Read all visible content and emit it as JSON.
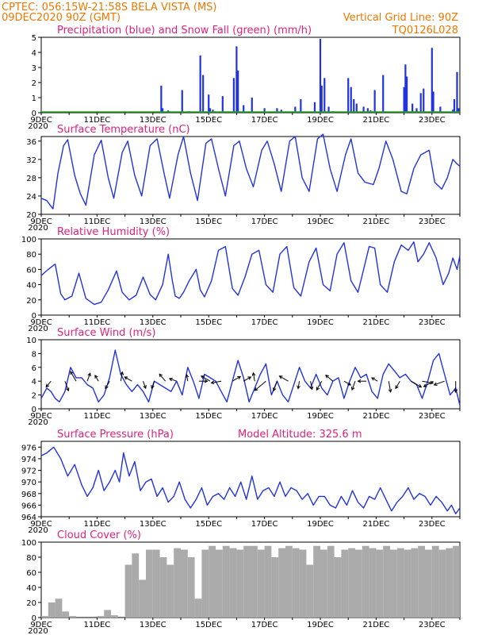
{
  "header": {
    "line1": "CPTEC:    056:15W-21:58S   BELA VISTA (MS)",
    "line2": "09DEC2020 90Z (GMT)",
    "grid_note": "Vertical Grid Line: 90Z",
    "run_code": "TQ0126L028"
  },
  "colors": {
    "line": "#2233dd",
    "snow": "#22aa22",
    "cloud": "#aaaaaa",
    "title": "#e0217a",
    "header": "#ee7700"
  },
  "x_labels": [
    "9DEC",
    "11DEC",
    "13DEC",
    "15DEC",
    "17DEC",
    "19DEC",
    "21DEC",
    "23DEC"
  ],
  "x_sublabel": "2020",
  "chart_data": [
    {
      "type": "bar",
      "id": "precip",
      "title": "Precipitation (blue) and Snow Fall (green) (mm/h)",
      "ylim": [
        0,
        5
      ],
      "yticks": [
        0,
        1,
        2,
        3,
        4,
        5
      ],
      "x": [
        3.1,
        4.3,
        4.35,
        4.55,
        5.05,
        5.3,
        5.7,
        5.8,
        6.0,
        6.05,
        6.15,
        6.3,
        6.5,
        6.9,
        7.0,
        7.05,
        7.25,
        7.55,
        8.0,
        8.1,
        8.45,
        8.6,
        9.1,
        9.3,
        9.8,
        10.0,
        10.05,
        10.15,
        10.3,
        10.45,
        11.0,
        11.1,
        11.2,
        11.3,
        11.55,
        11.7,
        11.8,
        11.95,
        12.25,
        13.0,
        13.05,
        13.1,
        13.3,
        13.45,
        13.6,
        13.7,
        14.0,
        14.05,
        14.3,
        14.75,
        14.8,
        14.9,
        14.95
      ],
      "values": [
        0.05,
        1.8,
        0.3,
        0.15,
        1.5,
        0.1,
        3.8,
        2.5,
        1.2,
        0.3,
        0.2,
        0.05,
        1.1,
        2.3,
        4.4,
        2.8,
        0.5,
        1.0,
        0.3,
        0.05,
        0.3,
        0.2,
        0.4,
        0.9,
        0.7,
        4.9,
        1.8,
        2.3,
        0.4,
        0.1,
        2.3,
        1.7,
        0.9,
        0.6,
        0.4,
        0.3,
        0.15,
        1.5,
        2.5,
        1.7,
        3.2,
        2.4,
        0.6,
        0.3,
        1.3,
        1.6,
        4.3,
        1.4,
        0.4,
        0.2,
        0.9,
        2.7,
        0.3
      ],
      "snow": []
    },
    {
      "type": "line",
      "id": "temp",
      "title": "Surface Temperature (nC)",
      "ylim": [
        20,
        37
      ],
      "yticks": [
        20,
        24,
        28,
        32,
        36
      ],
      "x": [
        0,
        0.2,
        0.42,
        0.6,
        0.8,
        0.95,
        1.2,
        1.4,
        1.6,
        1.9,
        2.15,
        2.4,
        2.6,
        2.9,
        3.1,
        3.35,
        3.6,
        3.9,
        4.15,
        4.4,
        4.6,
        4.9,
        5.1,
        5.35,
        5.6,
        5.9,
        6.1,
        6.35,
        6.6,
        6.9,
        7.1,
        7.35,
        7.6,
        7.9,
        8.1,
        8.35,
        8.6,
        8.9,
        9.1,
        9.35,
        9.6,
        9.9,
        10.1,
        10.35,
        10.6,
        10.9,
        11.1,
        11.35,
        11.6,
        11.9,
        12.1,
        12.35,
        12.6,
        12.9,
        13.1,
        13.35,
        13.6,
        13.9,
        14.1,
        14.35,
        14.55,
        14.75,
        14.9,
        15.0
      ],
      "values": [
        23.5,
        23.0,
        21.2,
        29.0,
        35.0,
        36.3,
        28.5,
        24.5,
        22.0,
        33.0,
        36.2,
        28.0,
        23.5,
        33.5,
        36.0,
        28.5,
        24.0,
        35.0,
        36.5,
        29.0,
        23.5,
        33.0,
        37.0,
        29.0,
        23.0,
        35.5,
        36.5,
        30.0,
        24.0,
        35.0,
        36.0,
        30.0,
        26.0,
        34.0,
        36.0,
        31.0,
        25.0,
        36.0,
        37.0,
        28.0,
        25.0,
        36.5,
        37.5,
        30.0,
        25.0,
        33.0,
        36.5,
        29.0,
        27.0,
        26.5,
        30.0,
        36.0,
        32.0,
        25.0,
        24.5,
        30.0,
        33.0,
        34.0,
        27.0,
        25.5,
        28.0,
        32.0,
        31.0,
        30.5
      ]
    },
    {
      "type": "line",
      "id": "humidity",
      "title": "Relative Humidity (%)",
      "ylim": [
        0,
        100
      ],
      "yticks": [
        0,
        20,
        40,
        60,
        80,
        100
      ],
      "x": [
        0,
        0.25,
        0.5,
        0.7,
        0.85,
        1.1,
        1.35,
        1.6,
        1.9,
        2.15,
        2.4,
        2.7,
        2.9,
        3.15,
        3.4,
        3.65,
        3.9,
        4.1,
        4.35,
        4.55,
        4.7,
        4.8,
        4.95,
        5.1,
        5.3,
        5.55,
        5.7,
        5.85,
        6.1,
        6.35,
        6.6,
        6.85,
        7.05,
        7.3,
        7.55,
        7.8,
        8.05,
        8.3,
        8.55,
        8.8,
        9.05,
        9.3,
        9.6,
        9.85,
        10.1,
        10.35,
        10.6,
        10.85,
        11.1,
        11.35,
        11.55,
        11.75,
        11.95,
        12.15,
        12.4,
        12.65,
        12.9,
        13.15,
        13.35,
        13.5,
        13.7,
        13.9,
        14.15,
        14.4,
        14.6,
        14.75,
        14.9,
        15.0
      ],
      "values": [
        52,
        60,
        67,
        28,
        20,
        25,
        55,
        22,
        14,
        17,
        33,
        58,
        30,
        20,
        26,
        50,
        27,
        20,
        40,
        80,
        45,
        25,
        22,
        30,
        45,
        60,
        33,
        24,
        45,
        85,
        90,
        35,
        26,
        50,
        80,
        85,
        40,
        30,
        80,
        90,
        36,
        25,
        70,
        88,
        40,
        32,
        80,
        95,
        45,
        30,
        60,
        90,
        88,
        40,
        30,
        70,
        92,
        85,
        96,
        70,
        80,
        95,
        75,
        40,
        55,
        75,
        60,
        78
      ]
    },
    {
      "type": "line",
      "id": "wind",
      "title": "Surface Wind (m/s)",
      "ylim": [
        0,
        10
      ],
      "yticks": [
        0,
        2,
        4,
        6,
        8,
        10
      ],
      "x": [
        0,
        0.2,
        0.35,
        0.5,
        0.65,
        0.85,
        1.05,
        1.25,
        1.45,
        1.65,
        1.85,
        2.05,
        2.25,
        2.45,
        2.65,
        2.85,
        3.05,
        3.25,
        3.45,
        3.65,
        3.85,
        4.05,
        4.25,
        4.45,
        4.65,
        4.85,
        5.05,
        5.25,
        5.45,
        5.65,
        5.85,
        6.05,
        6.25,
        6.45,
        6.65,
        6.85,
        7.05,
        7.25,
        7.45,
        7.65,
        7.85,
        8.05,
        8.25,
        8.45,
        8.65,
        8.85,
        9.05,
        9.25,
        9.45,
        9.65,
        9.85,
        10.05,
        10.25,
        10.45,
        10.65,
        10.85,
        11.05,
        11.25,
        11.45,
        11.65,
        11.85,
        12.05,
        12.25,
        12.45,
        12.65,
        12.85,
        13.05,
        13.25,
        13.45,
        13.65,
        13.85,
        14.05,
        14.25,
        14.45,
        14.65,
        14.85,
        15.0
      ],
      "values": [
        1.5,
        3.0,
        2.5,
        1.5,
        1.0,
        2.5,
        6.0,
        4.5,
        4.5,
        3.5,
        3.0,
        1.0,
        2.0,
        4.5,
        8.5,
        5.0,
        3.5,
        2.5,
        3.5,
        2.5,
        1.0,
        4.0,
        3.5,
        3.0,
        2.5,
        4.0,
        2.0,
        6.0,
        4.0,
        1.5,
        5.0,
        4.5,
        4.0,
        2.5,
        1.0,
        4.0,
        7.0,
        4.5,
        1.0,
        3.0,
        5.0,
        6.5,
        2.0,
        4.0,
        2.0,
        1.0,
        3.5,
        6.0,
        4.0,
        3.0,
        5.0,
        3.0,
        2.0,
        4.0,
        4.5,
        1.5,
        4.0,
        6.0,
        4.5,
        5.0,
        2.5,
        1.5,
        5.0,
        6.5,
        5.5,
        4.5,
        5.0,
        4.0,
        3.5,
        1.5,
        4.0,
        7.0,
        8.0,
        5.0,
        2.0,
        3.0,
        0.5
      ],
      "arrows": {
        "x": [
          0.35,
          0.85,
          1.25,
          1.65,
          2.05,
          2.45,
          2.85,
          3.25,
          3.65,
          4.05,
          4.45,
          4.85,
          5.25,
          5.65,
          6.05,
          6.45,
          6.85,
          7.25,
          7.65,
          8.05,
          8.45,
          8.85,
          9.25,
          9.65,
          10.05,
          10.45,
          10.85,
          11.25,
          11.65,
          12.05,
          12.45,
          12.85,
          13.25,
          13.65,
          14.05,
          14.45,
          14.85
        ],
        "dir": [
          220,
          160,
          330,
          20,
          330,
          210,
          10,
          300,
          160,
          200,
          320,
          290,
          350,
          90,
          300,
          260,
          60,
          60,
          350,
          230,
          200,
          300,
          190,
          170,
          210,
          310,
          120,
          200,
          270,
          300,
          170,
          210,
          120,
          100,
          240,
          250,
          180
        ],
        "speed": [
          2.5,
          4.0,
          4.5,
          3.0,
          2.0,
          3.0,
          3.5,
          3.0,
          2.5,
          2.5,
          3.5,
          2.5,
          2.0,
          3.0,
          4.0,
          4.0,
          3.5,
          3.0,
          3.0,
          6.5,
          4.0,
          4.0,
          2.5,
          3.0,
          4.0,
          3.5,
          2.5,
          3.5,
          3.0,
          2.0,
          4.5,
          3.0,
          5.0,
          4.5,
          4.5,
          4.5,
          4.5
        ]
      }
    },
    {
      "type": "line",
      "id": "pressure",
      "title": "Surface Pressure (hPa)",
      "annotation": "Model Altitude: 325.6 m",
      "ylim": [
        964,
        977
      ],
      "yticks": [
        964,
        966,
        968,
        970,
        972,
        974,
        976
      ],
      "x": [
        0,
        0.2,
        0.45,
        0.7,
        0.95,
        1.2,
        1.45,
        1.65,
        1.85,
        2.05,
        2.25,
        2.45,
        2.65,
        2.8,
        2.95,
        3.15,
        3.35,
        3.55,
        3.75,
        3.95,
        4.15,
        4.35,
        4.55,
        4.75,
        4.95,
        5.15,
        5.35,
        5.55,
        5.75,
        5.95,
        6.15,
        6.35,
        6.55,
        6.75,
        6.95,
        7.15,
        7.35,
        7.55,
        7.75,
        7.95,
        8.15,
        8.35,
        8.55,
        8.75,
        8.95,
        9.15,
        9.35,
        9.55,
        9.75,
        9.95,
        10.15,
        10.35,
        10.55,
        10.75,
        10.95,
        11.15,
        11.35,
        11.55,
        11.75,
        11.95,
        12.15,
        12.35,
        12.55,
        12.75,
        12.95,
        13.15,
        13.35,
        13.55,
        13.75,
        13.95,
        14.15,
        14.35,
        14.55,
        14.7,
        14.85,
        15.0
      ],
      "values": [
        974.5,
        975.0,
        976.0,
        974.0,
        971.0,
        973.0,
        969.5,
        967.5,
        969.0,
        972.0,
        968.5,
        970.0,
        972.0,
        970.0,
        975.0,
        971.0,
        973.5,
        968.5,
        970.0,
        970.5,
        967.5,
        969.0,
        966.5,
        967.5,
        970.0,
        967.0,
        965.5,
        967.0,
        969.0,
        966.0,
        967.5,
        968.0,
        967.0,
        969.0,
        967.5,
        970.0,
        967.0,
        971.0,
        967.0,
        968.5,
        969.0,
        967.5,
        970.0,
        967.5,
        969.0,
        968.5,
        967.0,
        968.0,
        966.0,
        967.5,
        967.5,
        966.0,
        965.5,
        967.5,
        966.0,
        968.5,
        966.5,
        965.5,
        967.5,
        967.0,
        969.0,
        967.0,
        965.0,
        966.5,
        967.5,
        969.0,
        967.0,
        968.0,
        967.5,
        966.0,
        967.5,
        966.5,
        965.0,
        966.0,
        964.5,
        965.5
      ]
    },
    {
      "type": "bar",
      "id": "cloud",
      "title": "Cloud Cover (%)",
      "ylim": [
        0,
        100
      ],
      "yticks": [
        0,
        20,
        40,
        60,
        80,
        100
      ],
      "x": [
        0,
        0.25,
        0.5,
        0.75,
        1.0,
        1.25,
        1.5,
        1.75,
        2.0,
        2.25,
        2.5,
        2.75,
        3.0,
        3.25,
        3.5,
        3.75,
        4.0,
        4.25,
        4.5,
        4.75,
        5.0,
        5.25,
        5.5,
        5.75,
        6.0,
        6.25,
        6.5,
        6.75,
        7.0,
        7.25,
        7.5,
        7.75,
        8.0,
        8.25,
        8.5,
        8.75,
        9.0,
        9.25,
        9.5,
        9.75,
        10.0,
        10.25,
        10.5,
        10.75,
        11.0,
        11.25,
        11.5,
        11.75,
        12.0,
        12.25,
        12.5,
        12.75,
        13.0,
        13.25,
        13.5,
        13.75,
        14.0,
        14.25,
        14.5,
        14.75
      ],
      "values": [
        2,
        20,
        25,
        8,
        2,
        0,
        0,
        0,
        2,
        10,
        3,
        0,
        70,
        85,
        50,
        90,
        90,
        80,
        70,
        92,
        90,
        80,
        25,
        90,
        95,
        90,
        95,
        92,
        90,
        95,
        95,
        90,
        95,
        80,
        92,
        95,
        92,
        90,
        70,
        95,
        90,
        95,
        80,
        90,
        92,
        90,
        95,
        92,
        90,
        95,
        90,
        92,
        90,
        92,
        95,
        90,
        95,
        90,
        92,
        95
      ]
    }
  ]
}
